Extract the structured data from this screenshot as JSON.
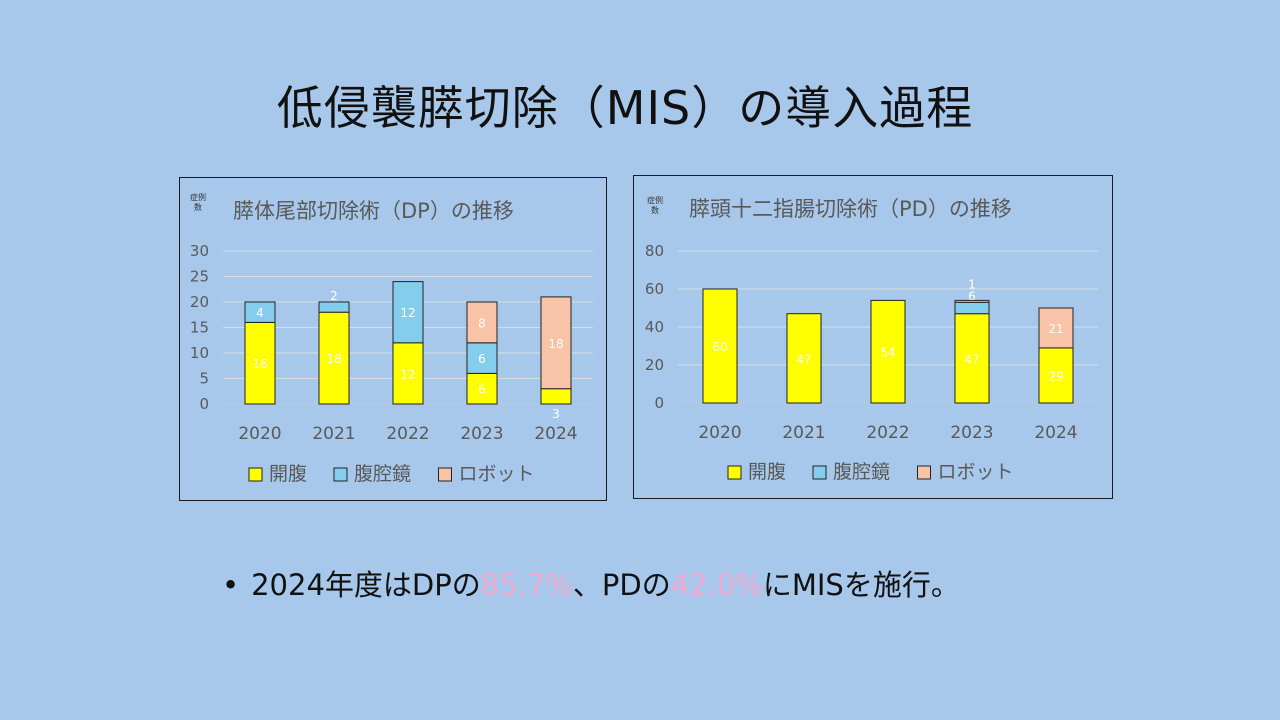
{
  "title": "低侵襲膵切除（MIS）の導入過程",
  "bullet": {
    "dot": "•",
    "parts": [
      "2024年度はDPの",
      "85.7%",
      "、PDの",
      "42.0%",
      "にMISを施行。"
    ]
  },
  "colors": {
    "background": "#a7c8ea",
    "open": "#ffff00",
    "laparoscopic": "#85cdec",
    "robot": "#f9c3a8",
    "highlight": "#f2a8cf"
  },
  "chart_data": [
    {
      "type": "bar",
      "stacked": true,
      "title": "膵体尾部切除術（DP）の推移",
      "ylabel": "症例数",
      "categories": [
        "2020",
        "2021",
        "2022",
        "2023",
        "2024"
      ],
      "ylim": [
        0,
        30
      ],
      "yticks": [
        0,
        5,
        10,
        15,
        20,
        25,
        30
      ],
      "grid": true,
      "legend_position": "bottom",
      "series": [
        {
          "name": "開腹",
          "color": "#ffff00",
          "values": [
            16,
            18,
            12,
            6,
            3
          ]
        },
        {
          "name": "腹腔鏡",
          "color": "#85cdec",
          "values": [
            4,
            2,
            12,
            6,
            0
          ]
        },
        {
          "name": "ロボット",
          "color": "#f9c3a8",
          "values": [
            0,
            0,
            0,
            8,
            18
          ]
        }
      ]
    },
    {
      "type": "bar",
      "stacked": true,
      "title": "膵頭十二指腸切除術（PD）の推移",
      "ylabel": "症例数",
      "categories": [
        "2020",
        "2021",
        "2022",
        "2023",
        "2024"
      ],
      "ylim": [
        0,
        80
      ],
      "yticks": [
        0,
        20,
        40,
        60,
        80
      ],
      "grid": true,
      "legend_position": "bottom",
      "series": [
        {
          "name": "開腹",
          "color": "#ffff00",
          "values": [
            60,
            47,
            54,
            47,
            29
          ]
        },
        {
          "name": "腹腔鏡",
          "color": "#85cdec",
          "values": [
            0,
            0,
            0,
            6,
            0
          ]
        },
        {
          "name": "ロボット",
          "color": "#f9c3a8",
          "values": [
            0,
            0,
            0,
            1,
            21
          ]
        }
      ]
    }
  ]
}
